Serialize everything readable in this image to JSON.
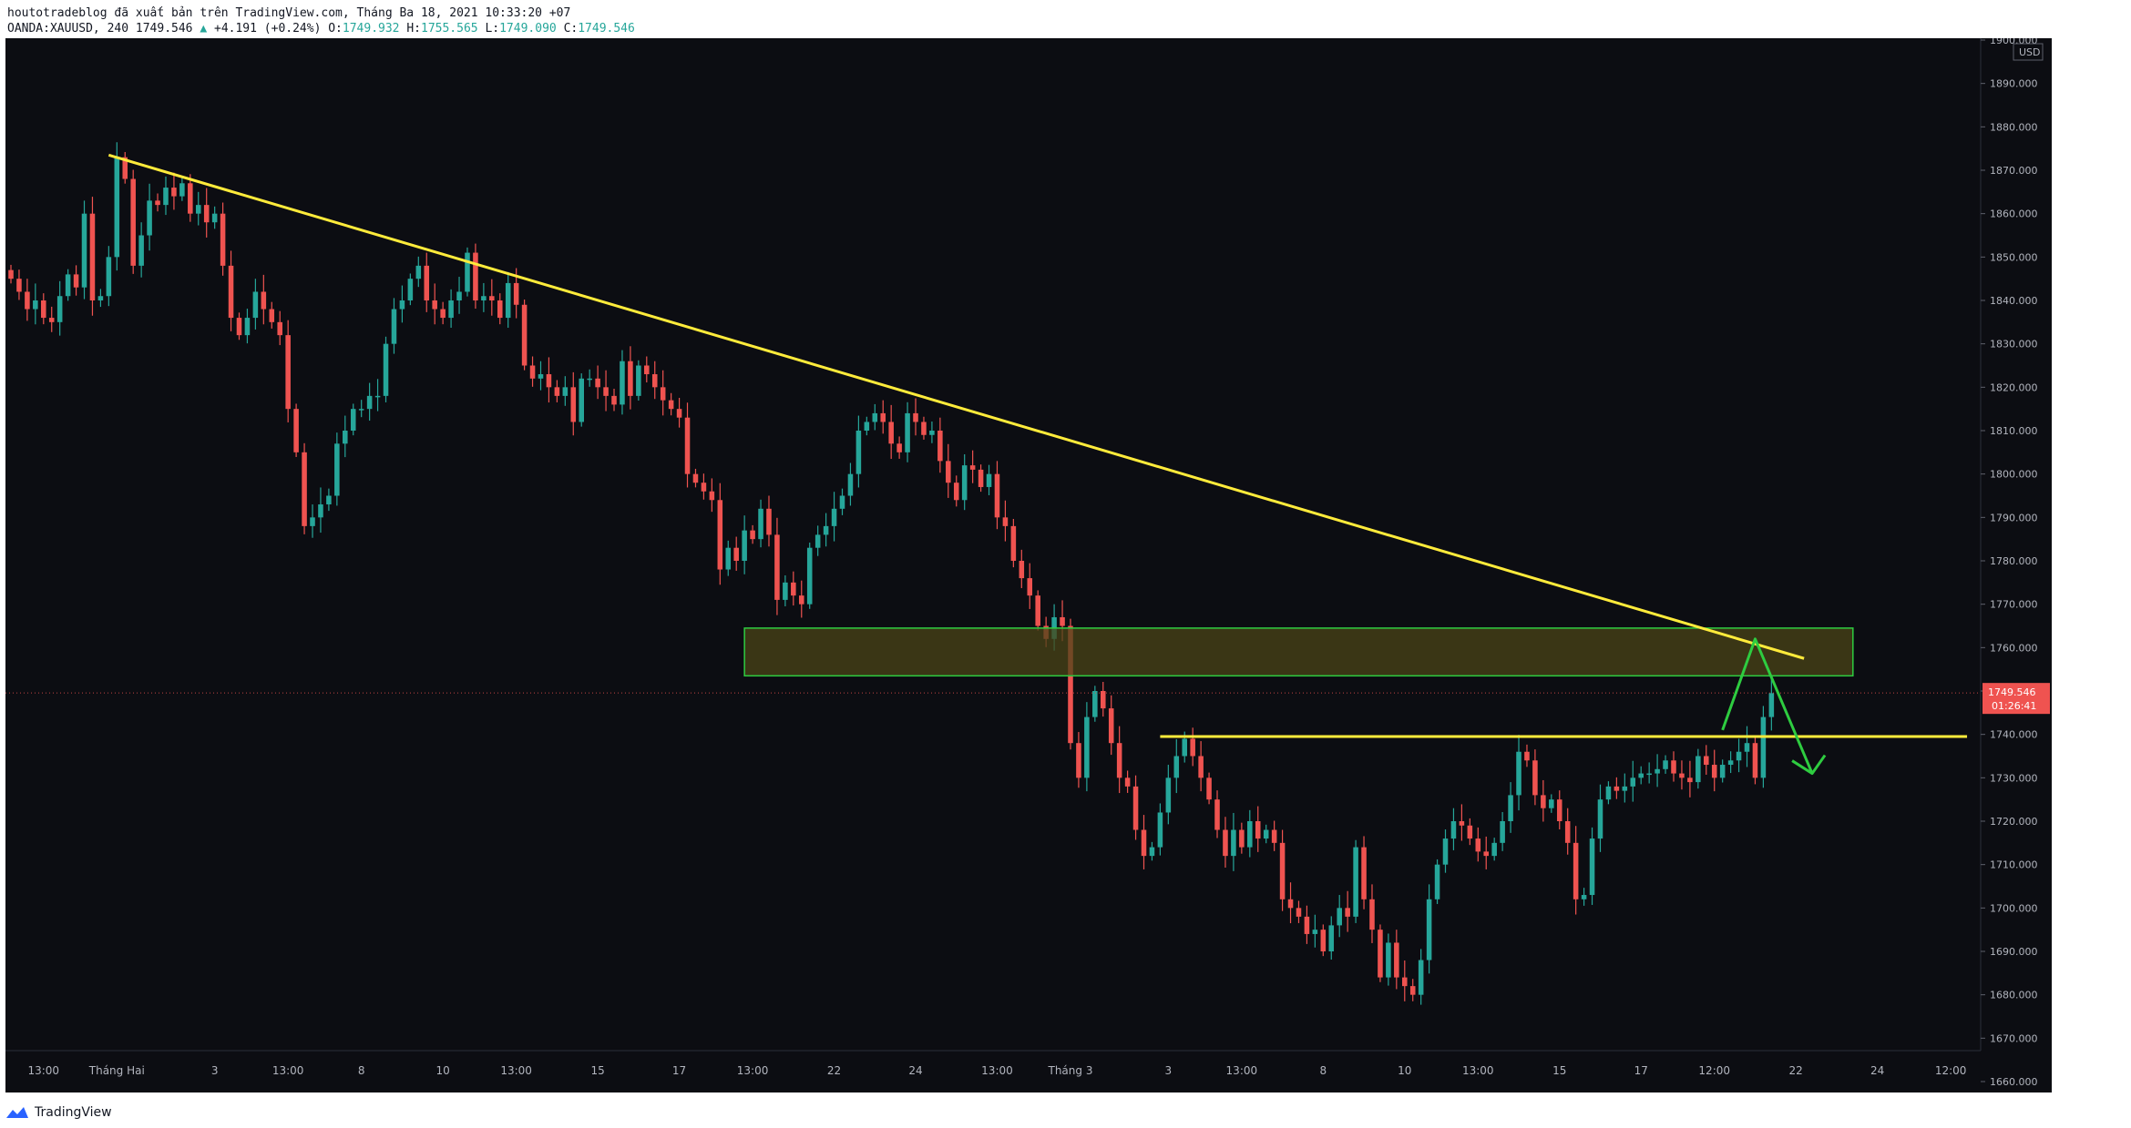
{
  "header": {
    "publish_line": "houtotradeblog đã xuất bản trên TradingView.com, Tháng Ba 18, 2021 10:33:20 +07",
    "symbol": "OANDA:XAUUSD, 240",
    "last": "1749.546",
    "change": "+4.191 (+0.24%)",
    "open_label": "O:",
    "open": "1749.932",
    "high_label": "H:",
    "high": "1755.565",
    "low_label": "L:",
    "low": "1749.090",
    "close_label": "C:",
    "close": "1749.546"
  },
  "footer": {
    "brand": "TradingView"
  },
  "colors": {
    "background": "#0c0d12",
    "up": "#26a69a",
    "down": "#ef5350",
    "trendline": "#ffeb3b",
    "zone_fill": "#4a4417",
    "zone_border": "#2ecc40",
    "arrow": "#2ecc40",
    "price_badge": "#ef5350"
  },
  "chart_data": {
    "type": "candlestick",
    "title": "",
    "currency": "USD",
    "ylim": [
      1660,
      1900
    ],
    "y_ticks": [
      "1660.000",
      "1670.000",
      "1680.000",
      "1690.000",
      "1700.000",
      "1710.000",
      "1720.000",
      "1730.000",
      "1740.000",
      "1750.000",
      "1760.000",
      "1770.000",
      "1780.000",
      "1790.000",
      "1800.000",
      "1810.000",
      "1820.000",
      "1830.000",
      "1840.000",
      "1850.000",
      "1860.000",
      "1870.000",
      "1880.000",
      "1890.000",
      "1900.000"
    ],
    "x_ticks": [
      {
        "label": "13:00",
        "bar": 4
      },
      {
        "label": "Tháng Hai",
        "bar": 13
      },
      {
        "label": "3",
        "bar": 25
      },
      {
        "label": "13:00",
        "bar": 34
      },
      {
        "label": "8",
        "bar": 43
      },
      {
        "label": "10",
        "bar": 53
      },
      {
        "label": "13:00",
        "bar": 62
      },
      {
        "label": "15",
        "bar": 72
      },
      {
        "label": "17",
        "bar": 82
      },
      {
        "label": "13:00",
        "bar": 91
      },
      {
        "label": "22",
        "bar": 101
      },
      {
        "label": "24",
        "bar": 111
      },
      {
        "label": "13:00",
        "bar": 121
      },
      {
        "label": "Tháng 3",
        "bar": 130
      },
      {
        "label": "3",
        "bar": 142
      },
      {
        "label": "13:00",
        "bar": 151
      },
      {
        "label": "8",
        "bar": 161
      },
      {
        "label": "10",
        "bar": 171
      },
      {
        "label": "13:00",
        "bar": 180
      },
      {
        "label": "15",
        "bar": 190
      },
      {
        "label": "17",
        "bar": 200
      },
      {
        "label": "12:00",
        "bar": 209
      },
      {
        "label": "22",
        "bar": 219
      },
      {
        "label": "24",
        "bar": 229
      },
      {
        "label": "12:00",
        "bar": 238
      }
    ],
    "last_price": 1749.546,
    "last_price_label": "1749.546",
    "countdown": "01:26:41",
    "close_series": [
      1845,
      1842,
      1838,
      1840,
      1836,
      1835,
      1841,
      1846,
      1843,
      1860,
      1840,
      1841,
      1850,
      1873,
      1868,
      1848,
      1855,
      1863,
      1862,
      1866,
      1864,
      1867,
      1860,
      1862,
      1858,
      1860,
      1848,
      1836,
      1832,
      1836,
      1842,
      1838,
      1835,
      1832,
      1815,
      1805,
      1788,
      1790,
      1793,
      1795,
      1807,
      1810,
      1815,
      1815,
      1818,
      1818,
      1830,
      1838,
      1840,
      1845,
      1848,
      1840,
      1838,
      1836,
      1840,
      1842,
      1851,
      1840,
      1841,
      1840,
      1836,
      1844,
      1839,
      1825,
      1822,
      1823,
      1820,
      1818,
      1820,
      1812,
      1822,
      1822,
      1820,
      1818,
      1816,
      1826,
      1818,
      1825,
      1823,
      1820,
      1817,
      1815,
      1813,
      1800,
      1798,
      1796,
      1794,
      1778,
      1783,
      1780,
      1787,
      1785,
      1792,
      1786,
      1771,
      1775,
      1772,
      1770,
      1783,
      1786,
      1788,
      1792,
      1795,
      1800,
      1810,
      1812,
      1814,
      1812,
      1807,
      1805,
      1814,
      1812,
      1809,
      1810,
      1803,
      1798,
      1794,
      1802,
      1801,
      1797,
      1800,
      1790,
      1788,
      1780,
      1776,
      1772,
      1765,
      1762,
      1767,
      1765,
      1738,
      1730,
      1744,
      1750,
      1746,
      1738,
      1730,
      1728,
      1718,
      1712,
      1714,
      1722,
      1730,
      1735,
      1739,
      1735,
      1730,
      1725,
      1718,
      1712,
      1718,
      1714,
      1720,
      1716,
      1718,
      1715,
      1702,
      1700,
      1698,
      1694,
      1695,
      1690,
      1696,
      1700,
      1698,
      1714,
      1702,
      1695,
      1684,
      1692,
      1684,
      1682,
      1680,
      1688,
      1702,
      1710,
      1716,
      1720,
      1719,
      1716,
      1713,
      1712,
      1715,
      1720,
      1726,
      1736,
      1734,
      1726,
      1723,
      1725,
      1720,
      1715,
      1702,
      1703,
      1716,
      1725,
      1728,
      1727,
      1728,
      1730,
      1731,
      1731,
      1732,
      1734,
      1731,
      1730,
      1729,
      1735,
      1733,
      1730,
      1733,
      1734,
      1736,
      1738,
      1730,
      1744,
      1749.5
    ],
    "x_domain_bars": [
      0,
      241
    ],
    "drawings": {
      "descending_trendline": {
        "from": {
          "bar": 12,
          "price": 1873.5
        },
        "to": {
          "bar": 220,
          "price": 1757.5
        }
      },
      "resistance_zone": {
        "from_bar": 90,
        "to_bar": 226,
        "bottom": 1753.5,
        "top": 1764.5
      },
      "support_line": {
        "from_bar": 141,
        "to_bar": 240,
        "price": 1739.5
      },
      "projection_arrow": [
        {
          "bar": 210,
          "price": 1741
        },
        {
          "bar": 214,
          "price": 1762
        },
        {
          "bar": 221,
          "price": 1731
        }
      ]
    }
  }
}
